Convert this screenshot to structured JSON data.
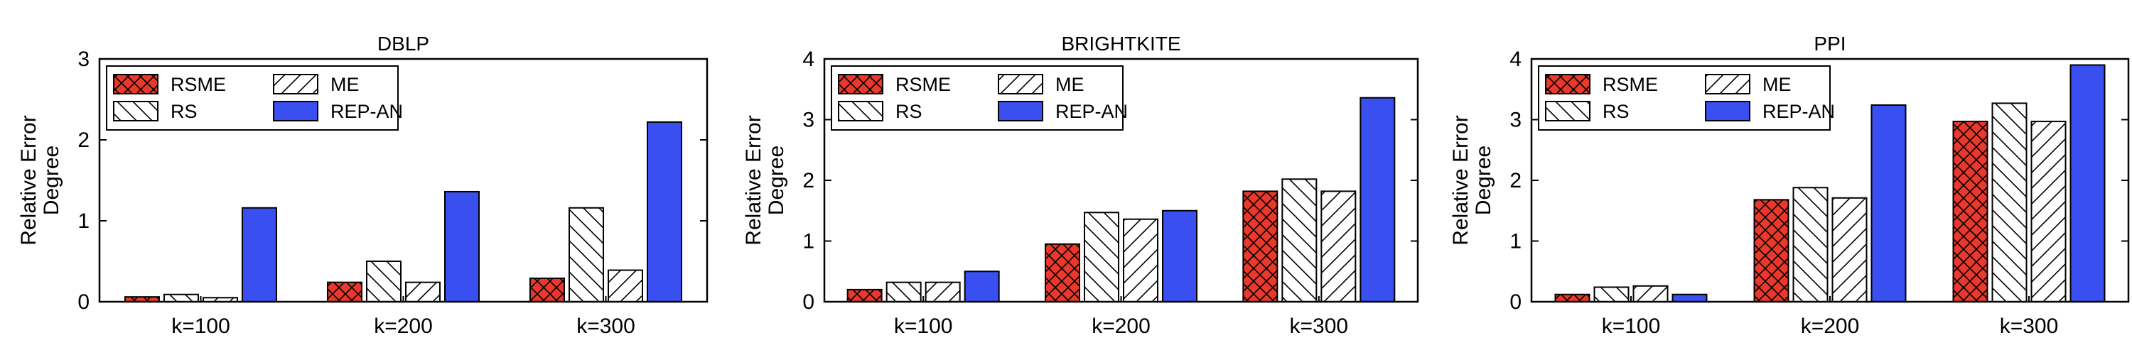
{
  "chart_data": [
    {
      "type": "bar",
      "title": "DBLP",
      "ylabel": [
        "Relative Error",
        "Degree"
      ],
      "xlabel": "",
      "categories": [
        "k=100",
        "k=200",
        "k=300"
      ],
      "ylim": [
        0,
        3
      ],
      "yticks": [
        "0",
        "1",
        "2",
        "3"
      ],
      "legend_position": "top-left",
      "grid": false,
      "series": [
        {
          "name": "RSME",
          "values": [
            0.06,
            0.24,
            0.29
          ]
        },
        {
          "name": "RS",
          "values": [
            0.09,
            0.5,
            1.16
          ]
        },
        {
          "name": "ME",
          "values": [
            0.05,
            0.24,
            0.39
          ]
        },
        {
          "name": "REP-AN",
          "values": [
            1.16,
            1.36,
            2.22
          ]
        }
      ]
    },
    {
      "type": "bar",
      "title": "BRIGHTKITE",
      "ylabel": [
        "Relative Error",
        "Degree"
      ],
      "xlabel": "",
      "categories": [
        "k=100",
        "k=200",
        "k=300"
      ],
      "ylim": [
        0,
        4
      ],
      "yticks": [
        "0",
        "1",
        "2",
        "3",
        "4"
      ],
      "legend_position": "top-left",
      "grid": false,
      "series": [
        {
          "name": "RSME",
          "values": [
            0.2,
            0.95,
            1.82
          ]
        },
        {
          "name": "RS",
          "values": [
            0.32,
            1.47,
            2.02
          ]
        },
        {
          "name": "ME",
          "values": [
            0.32,
            1.36,
            1.82
          ]
        },
        {
          "name": "REP-AN",
          "values": [
            0.5,
            1.5,
            3.36
          ]
        }
      ]
    },
    {
      "type": "bar",
      "title": "PPI",
      "ylabel": [
        "Relative Error",
        "Degree"
      ],
      "xlabel": "",
      "categories": [
        "k=100",
        "k=200",
        "k=300"
      ],
      "ylim": [
        0,
        4
      ],
      "yticks": [
        "0",
        "1",
        "2",
        "3",
        "4"
      ],
      "legend_position": "top-left",
      "grid": false,
      "series": [
        {
          "name": "RSME",
          "values": [
            0.12,
            1.68,
            2.97
          ]
        },
        {
          "name": "RS",
          "values": [
            0.24,
            1.88,
            3.27
          ]
        },
        {
          "name": "ME",
          "values": [
            0.26,
            1.71,
            2.97
          ]
        },
        {
          "name": "REP-AN",
          "values": [
            0.12,
            3.24,
            3.9
          ]
        }
      ]
    }
  ],
  "style": {
    "series_fills": {
      "RSME": "#e8392c",
      "RS": "#ffffff",
      "ME": "#ffffff",
      "REP-AN": "#3a4ff0"
    },
    "series_patterns": {
      "RSME": "crosshatch",
      "RS": "backslash-hatch",
      "ME": "slash-hatch",
      "REP-AN": "solid"
    }
  }
}
